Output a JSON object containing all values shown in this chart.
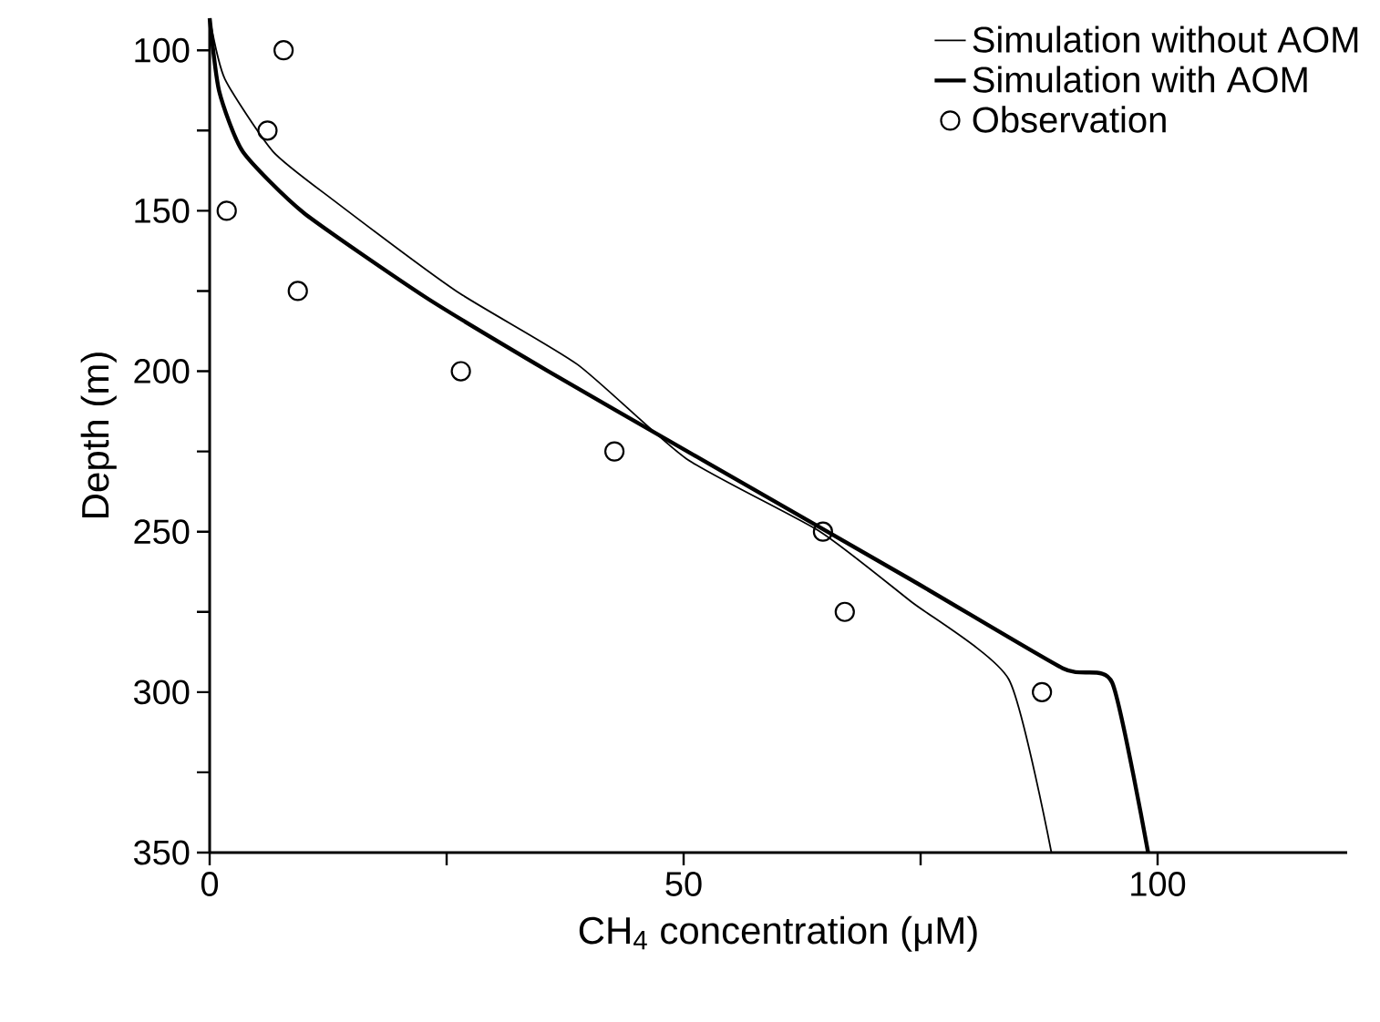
{
  "chart_data": {
    "type": "line",
    "xlabel": "CH$_{4}$ concentration (μM)",
    "ylabel": "Depth (m)",
    "xlim": [
      0,
      120
    ],
    "ylim": [
      350,
      90
    ],
    "xticks": [
      0,
      {
        "value": 25,
        "label": null
      },
      50,
      {
        "value": 75,
        "label": null
      },
      100
    ],
    "yticks": [
      100,
      {
        "value": 125,
        "label": null
      },
      150,
      {
        "value": 175,
        "label": null
      },
      200,
      {
        "value": 225,
        "label": null
      },
      250,
      {
        "value": 275,
        "label": null
      },
      300,
      {
        "value": 325,
        "label": null
      },
      350
    ],
    "grid": false,
    "legend": "top right",
    "series": [
      {
        "name": "Simulation without AOM",
        "color": "#000000",
        "marker": "none",
        "line_style": "solid",
        "x": [
          0,
          1.6,
          6.7,
          13.1,
          26,
          38.8,
          50.3,
          64.4,
          74,
          84.3,
          88.8
        ],
        "values": [
          90,
          108.9,
          131.6,
          146.8,
          175,
          197.9,
          227.3,
          250,
          271.8,
          296,
          350
        ]
      },
      {
        "name": "Simulation with AOM",
        "color": "#000000",
        "marker": "none",
        "line_style": "solid",
        "x": [
          0,
          1,
          3.5,
          9.9,
          22.8,
          35.6,
          48.4,
          74,
          90,
          95.2,
          99
        ],
        "values": [
          90,
          112.7,
          131.6,
          150.6,
          177,
          199.8,
          221.6,
          265,
          292.6,
          297,
          350
        ]
      },
      {
        "name": "Observation",
        "type": "scatter",
        "color": "#000000",
        "marker": "circle",
        "x": [
          7.8,
          6.1,
          1.8,
          9.3,
          26.5,
          42.7,
          64.7,
          67,
          87.8
        ],
        "values": [
          100,
          125,
          150,
          175,
          200,
          225,
          250,
          275,
          300
        ]
      }
    ]
  }
}
